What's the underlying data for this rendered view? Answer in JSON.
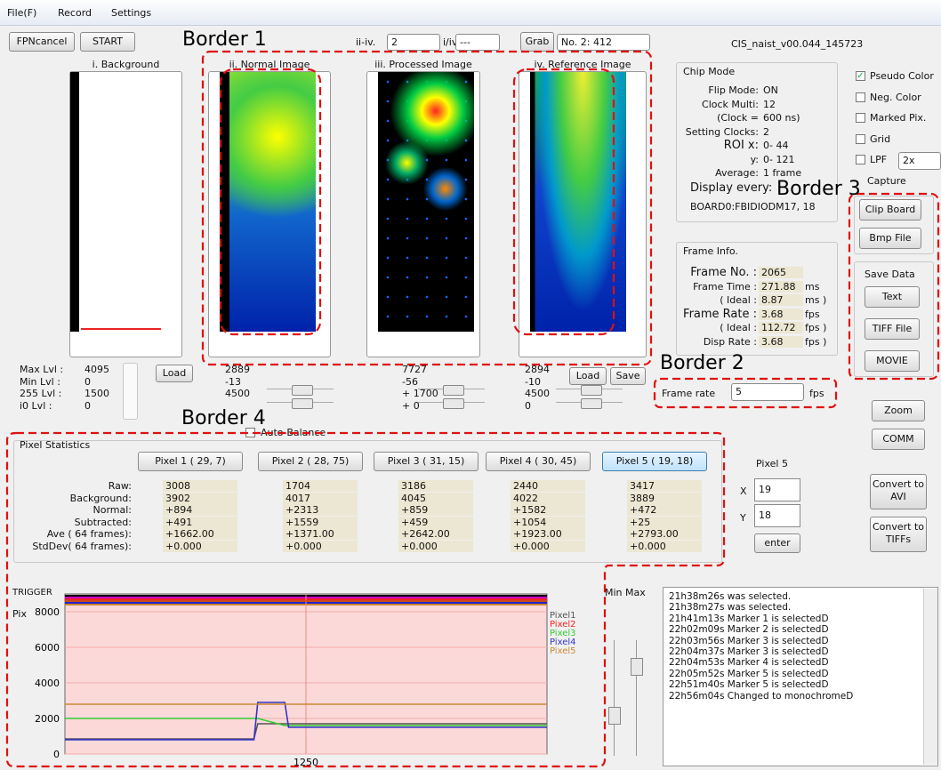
{
  "menu": [
    "File(F)",
    "Record",
    "Settings"
  ],
  "toolbar": {
    "fpn_cancel": "FPNcancel",
    "start": "START",
    "ii_iv_label": "ii-iv.",
    "ii_iv_value": "2",
    "i_iv_label": "i/iv.",
    "i_iv_value": "---",
    "grab": "Grab",
    "frame_select": "No. 2: 412",
    "version": "CIS_naist_v00.044_145723"
  },
  "annotations": [
    "Border 1",
    "Border 2",
    "Border 3",
    "Border 4"
  ],
  "images": [
    "i. Background",
    "ii. Normal Image",
    "iii. Processed Image",
    "iv. Reference Image"
  ],
  "levels": {
    "labels": [
      "Max Lvl :",
      "Min Lvl :",
      "255 Lvl :",
      "i0 Lvl :"
    ],
    "columns": [
      [
        "4095",
        "0",
        "1500",
        "0"
      ],
      [
        "2889",
        "-13",
        "4500"
      ],
      [
        "7727",
        "-56",
        "+ 1700",
        "+ 0"
      ],
      [
        "2894",
        "-10",
        "4500",
        "0"
      ]
    ],
    "load": "Load",
    "save": "Save"
  },
  "chip_mode": {
    "title": "Chip Mode",
    "rows": [
      {
        "label": "Flip Mode:",
        "value": "ON"
      },
      {
        "label": "Clock Multi:",
        "value": "12"
      },
      {
        "label": "(Clock =",
        "value": "600 ns)"
      },
      {
        "label": "Setting Clocks:",
        "value": "2"
      },
      {
        "label": "ROI x:",
        "value": "0- 44"
      },
      {
        "label": "y:",
        "value": "0- 121"
      },
      {
        "label": "Average:",
        "value": "1 frame"
      }
    ],
    "display_every": "Display every:",
    "board": "BOARD0:FBIDIODM17, 18"
  },
  "options": {
    "checkboxes": [
      {
        "label": "Pseudo Color",
        "checked": true
      },
      {
        "label": "Neg. Color",
        "checked": false
      },
      {
        "label": "Marked Pix.",
        "checked": false
      },
      {
        "label": "Grid",
        "checked": false
      },
      {
        "label": "LPF",
        "checked": false
      }
    ],
    "lpf_value": "2x",
    "capture": "Capture"
  },
  "capture_buttons": [
    "Clip Board",
    "Bmp File"
  ],
  "save_data": {
    "title": "Save Data",
    "buttons": [
      "Text",
      "TIFF File",
      "MOVIE"
    ]
  },
  "frame_info": {
    "title": "Frame Info.",
    "rows": [
      {
        "label": "Frame No. :",
        "value": "2065"
      },
      {
        "label": "Frame Time :",
        "value": "271.88",
        "unit": "ms"
      },
      {
        "label": "( Ideal :",
        "value": "8.87",
        "unit": "ms )"
      },
      {
        "label": "Frame Rate :",
        "value": "3.68",
        "unit": "fps"
      },
      {
        "label": "( Ideal :",
        "value": "112.72",
        "unit": "fps )"
      },
      {
        "label": "Disp Rate :",
        "value": "3.68",
        "unit": "fps )"
      }
    ]
  },
  "frame_rate": {
    "label": "Frame rate",
    "value": "5",
    "unit": "fps"
  },
  "auto_balance": "Auto-Balance",
  "side_buttons": [
    "Zoom",
    "COMM"
  ],
  "convert_buttons": [
    "Convert to AVI",
    "Convert to TIFFs"
  ],
  "pixel_stats": {
    "title": "Pixel Statistics",
    "row_labels": [
      "Raw:",
      "Background:",
      "Normal:",
      "Subtracted:",
      "Ave ( 64 frames):",
      "StdDev( 64 frames):"
    ],
    "pixels": [
      {
        "button": "Pixel 1 ( 29,  7)",
        "values": [
          "3008",
          "3902",
          "+894",
          "+491",
          "+1662.00",
          "+0.000"
        ]
      },
      {
        "button": "Pixel 2 ( 28, 75)",
        "values": [
          "1704",
          "4017",
          "+2313",
          "+1559",
          "+1371.00",
          "+0.000"
        ]
      },
      {
        "button": "Pixel 3 ( 31, 15)",
        "values": [
          "3186",
          "4045",
          "+859",
          "+459",
          "+2642.00",
          "+0.000"
        ]
      },
      {
        "button": "Pixel 4 ( 30, 45)",
        "values": [
          "2440",
          "4022",
          "+1582",
          "+1054",
          "+1923.00",
          "+0.000"
        ]
      },
      {
        "button": "Pixel 5 ( 19, 18)",
        "values": [
          "3417",
          "3889",
          "+472",
          "+25",
          "+2793.00",
          "+0.000"
        ]
      }
    ]
  },
  "pixel_select": {
    "title": "Pixel 5",
    "x_label": "X",
    "x": "19",
    "y_label": "Y",
    "y": "18",
    "enter": "enter"
  },
  "plot": {
    "trigger": "TRIGGER",
    "y_label": "Pix",
    "min_label": "Min",
    "max_label": "Max",
    "ylim": [
      0,
      9000
    ],
    "yticks": [
      0,
      2000,
      4000,
      6000,
      8000
    ],
    "xlim": [
      0,
      2500
    ],
    "xticks": [
      1250
    ],
    "x": [
      0,
      980,
      1000,
      1140,
      1160,
      2500
    ],
    "series": [
      {
        "name": "Pixel1",
        "color": "#555555",
        "values": [
          850,
          850,
          1700,
          1700,
          1700,
          1700
        ]
      },
      {
        "name": "Pixel2",
        "color": "#ff2020",
        "values": [
          8600,
          8600,
          8600,
          8600,
          8600,
          8600
        ]
      },
      {
        "name": "Pixel3",
        "color": "#33cc33",
        "values": [
          2000,
          2000,
          2000,
          1600,
          1600,
          1600
        ]
      },
      {
        "name": "Pixel4",
        "color": "#3333cc",
        "values": [
          800,
          800,
          2900,
          2900,
          1500,
          1500
        ]
      },
      {
        "name": "Pixel5",
        "color": "#cc8833",
        "values": [
          2800,
          2800,
          2800,
          2800,
          2800,
          2800
        ]
      }
    ]
  },
  "log": [
    "21h38m26s was selected.",
    "21h38m27s was selected.",
    "21h41m13s Marker 1 is selectedD",
    "22h02m09s Marker 2 is selectedD",
    "22h03m56s Marker 3 is selectedD",
    "22h04m37s Marker 3 is selectedD",
    "22h04m53s Marker 4 is selectedD",
    "22h05m52s Marker 5 is selectedD",
    "22h51m40s Marker 5 is selectedD",
    "22h56m04s Changed to monochromeD"
  ]
}
